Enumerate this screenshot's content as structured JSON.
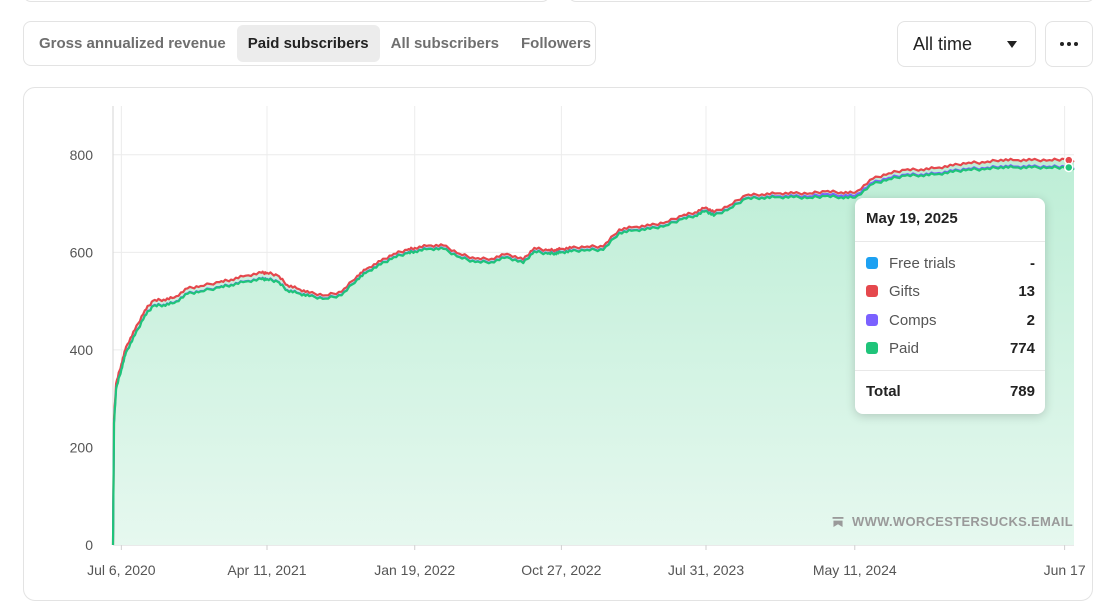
{
  "tabs": [
    {
      "label": "Gross annualized revenue",
      "active": false
    },
    {
      "label": "Paid subscribers",
      "active": true
    },
    {
      "label": "All subscribers",
      "active": false
    },
    {
      "label": "Followers",
      "active": false
    }
  ],
  "range": {
    "label": "All time"
  },
  "more": {
    "icon": "ellipsis-icon"
  },
  "watermark": {
    "text": "WWW.WORCESTERSUCKS.EMAIL",
    "icon": "bookmark-icon"
  },
  "tooltip": {
    "date": "May 19, 2025",
    "rows": [
      {
        "label": "Free trials",
        "value": "-",
        "color": "#1da1f2"
      },
      {
        "label": "Gifts",
        "value": "13",
        "color": "#e5484d"
      },
      {
        "label": "Comps",
        "value": "2",
        "color": "#7b61ff"
      },
      {
        "label": "Paid",
        "value": "774",
        "color": "#1fc47a"
      }
    ],
    "total_label": "Total",
    "total_value": "789"
  },
  "chart_data": {
    "type": "area",
    "title": "",
    "xlabel": "",
    "ylabel": "",
    "ylim": [
      0,
      900
    ],
    "y_ticks": [
      "0",
      "200",
      "400",
      "600",
      "800"
    ],
    "x_ticks": [
      {
        "label": "Jul 6, 2020",
        "date": "2020-07-06"
      },
      {
        "label": "Apr 11, 2021",
        "date": "2021-04-11"
      },
      {
        "label": "Jan 19, 2022",
        "date": "2022-01-19"
      },
      {
        "label": "Oct 27, 2022",
        "date": "2022-10-27"
      },
      {
        "label": "Jul 31, 2023",
        "date": "2023-07-31"
      },
      {
        "label": "May 11, 2024",
        "date": "2024-05-11"
      },
      {
        "label": "Jun 17",
        "date": "2025-06-17"
      }
    ],
    "grid": true,
    "colors": {
      "paid": "#1fc47a",
      "gifts": "#e5484d",
      "comps": "#7b61ff",
      "free_trials": "#1da1f2",
      "fill": "#d5f5e6"
    },
    "series": [
      {
        "name": "Paid",
        "x": [
          "2020-06-20",
          "2020-06-22",
          "2020-06-26",
          "2020-07-06",
          "2020-07-15",
          "2020-08-01",
          "2020-08-20",
          "2020-09-05",
          "2020-09-25",
          "2020-10-15",
          "2020-11-10",
          "2020-12-05",
          "2021-01-10",
          "2021-02-01",
          "2021-03-01",
          "2021-04-01",
          "2021-04-11",
          "2021-05-01",
          "2021-05-20",
          "2021-06-10",
          "2021-07-01",
          "2021-08-01",
          "2021-09-01",
          "2021-10-01",
          "2021-10-20",
          "2021-11-15",
          "2021-12-10",
          "2022-01-05",
          "2022-01-19",
          "2022-02-15",
          "2022-03-15",
          "2022-04-15",
          "2022-05-15",
          "2022-06-15",
          "2022-07-15",
          "2022-08-15",
          "2022-09-05",
          "2022-10-01",
          "2022-10-15",
          "2022-10-27",
          "2022-11-15",
          "2022-12-15",
          "2023-01-15",
          "2023-02-15",
          "2023-03-15",
          "2023-04-15",
          "2023-05-15",
          "2023-06-15",
          "2023-07-10",
          "2023-07-31",
          "2023-08-15",
          "2023-09-15",
          "2023-10-15",
          "2023-11-15",
          "2023-12-15",
          "2024-01-15",
          "2024-02-15",
          "2024-03-15",
          "2024-04-15",
          "2024-05-11",
          "2024-06-15",
          "2024-07-15",
          "2024-08-15",
          "2024-09-15",
          "2024-10-15",
          "2024-11-15",
          "2024-12-15",
          "2025-01-15",
          "2025-02-15",
          "2025-03-15",
          "2025-04-15",
          "2025-05-19",
          "2025-06-17",
          "2025-07-05"
        ],
        "values": [
          0,
          250,
          320,
          360,
          395,
          430,
          470,
          490,
          492,
          496,
          515,
          520,
          528,
          533,
          540,
          545,
          545,
          540,
          522,
          516,
          510,
          505,
          512,
          545,
          560,
          575,
          590,
          598,
          602,
          607,
          607,
          590,
          580,
          580,
          590,
          578,
          602,
          597,
          598,
          600,
          602,
          605,
          605,
          640,
          645,
          648,
          655,
          668,
          675,
          685,
          675,
          690,
          710,
          712,
          713,
          713,
          712,
          715,
          713,
          712,
          740,
          750,
          757,
          758,
          760,
          765,
          770,
          770,
          775,
          774,
          774,
          774,
          774,
          772
        ]
      },
      {
        "name": "Gifts",
        "values_offset_note": "",
        "values": [
          0,
          8,
          10,
          10,
          10,
          10,
          10,
          10,
          10,
          10,
          10,
          10,
          10,
          10,
          11,
          12,
          12,
          12,
          10,
          8,
          6,
          6,
          6,
          6,
          6,
          6,
          6,
          6,
          6,
          6,
          6,
          6,
          6,
          6,
          6,
          6,
          6,
          6,
          6,
          6,
          6,
          6,
          6,
          6,
          6,
          6,
          6,
          6,
          6,
          6,
          6,
          6,
          6,
          6,
          6,
          6,
          6,
          6,
          6,
          6,
          8,
          9,
          10,
          10,
          11,
          11,
          12,
          12,
          13,
          13,
          13,
          13,
          15,
          14
        ]
      },
      {
        "name": "Comps",
        "values": [
          0,
          1,
          1,
          1,
          1,
          1,
          1,
          1,
          1,
          1,
          1,
          1,
          1,
          1,
          1,
          1,
          1,
          1,
          1,
          1,
          1,
          1,
          1,
          1,
          1,
          1,
          1,
          1,
          1,
          1,
          1,
          1,
          1,
          1,
          1,
          1,
          1,
          1,
          1,
          1,
          1,
          1,
          1,
          1,
          1,
          1,
          1,
          1,
          1,
          1,
          1,
          1,
          1,
          1,
          2,
          2,
          3,
          4,
          4,
          4,
          3,
          3,
          2,
          2,
          2,
          2,
          2,
          2,
          2,
          2,
          2,
          2,
          2,
          2
        ]
      }
    ]
  }
}
